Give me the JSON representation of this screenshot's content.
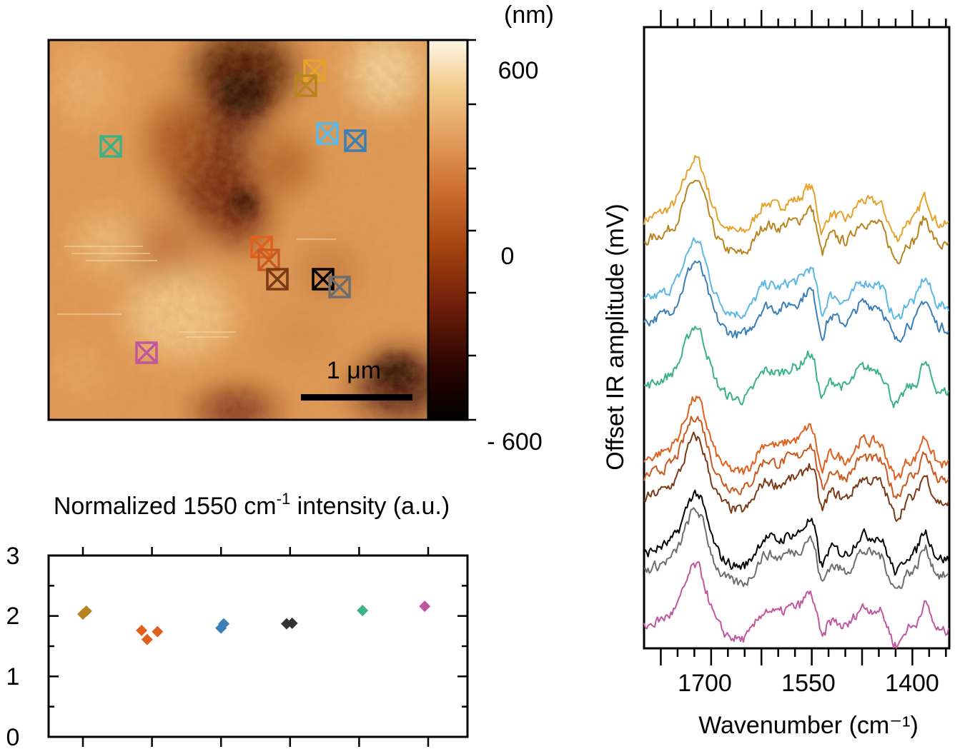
{
  "afm_panel": {
    "colorbar_unit": "(nm)",
    "colorbar_ticks": [
      "600",
      "0",
      "- 600"
    ],
    "scalebar_label": "1 μm",
    "marker_colors": [
      "#E6A22A",
      "#B8841F",
      "#5CB8E4",
      "#3A7FB8",
      "#3CB287",
      "#E0601E",
      "#C95A20",
      "#7A3A15",
      "#000000",
      "#6E6E6E",
      "#C0579E"
    ],
    "colormap": [
      "#000000",
      "#2a0500",
      "#6e1e0a",
      "#a3420f",
      "#cc6e2e",
      "#e3a060",
      "#f2cc8e",
      "#fdf6e6"
    ]
  },
  "chart_data": [
    {
      "type": "scatter",
      "title": "Normalized 1550 cm-1 intensity (a.u.)",
      "title_parts": {
        "prefix": "Normalized 1550 cm",
        "superscript": "-1",
        "suffix": " intensity (a.u.)"
      },
      "ylim": [
        0,
        3
      ],
      "y_ticks": [
        "0",
        "1",
        "2",
        "3"
      ],
      "groups": [
        {
          "color": "#B8841F",
          "points": [
            [
              1,
              2.03
            ],
            [
              1.05,
              2.08
            ]
          ]
        },
        {
          "color": "#E0601E",
          "points": [
            [
              1.85,
              1.76
            ],
            [
              1.93,
              1.61
            ],
            [
              2.08,
              1.74
            ]
          ]
        },
        {
          "color": "#3A7FB8",
          "points": [
            [
              3.0,
              1.8
            ],
            [
              3.04,
              1.87
            ]
          ]
        },
        {
          "color": "#333333",
          "points": [
            [
              3.95,
              1.87
            ],
            [
              4.03,
              1.88
            ]
          ]
        },
        {
          "color": "#3CB287",
          "points": [
            [
              5.05,
              2.09
            ]
          ]
        },
        {
          "color": "#C0579E",
          "points": [
            [
              5.95,
              2.16
            ]
          ]
        }
      ]
    },
    {
      "type": "line",
      "xlabel": "Wavenumber (cm⁻¹)",
      "ylabel": "Offset IR amplitude (mV)",
      "xlim": [
        1800,
        1345
      ],
      "x_ticks": [
        "1700",
        "1550",
        "1400"
      ],
      "x_tick_values": [
        1700,
        1550,
        1400
      ],
      "series_colors": [
        "#E6A22A",
        "#B8841F",
        "#5CB8E4",
        "#3A7FB8",
        "#3CB287",
        "#E0601E",
        "#C95A20",
        "#7A3A15",
        "#000000",
        "#6E6E6E",
        "#C0579E"
      ],
      "offsets": [
        9.5,
        9.0,
        7.6,
        7.1,
        5.6,
        3.9,
        3.5,
        3.0,
        1.7,
        1.3,
        0.0
      ]
    }
  ]
}
